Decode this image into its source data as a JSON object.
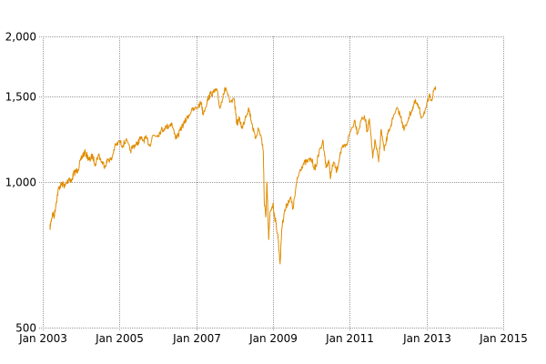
{
  "chart_data": {
    "type": "line",
    "y_scale": "log",
    "xlim": [
      "2003-01-01",
      "2015-01-01"
    ],
    "ylim": [
      500,
      2000
    ],
    "x_ticks": [
      {
        "date": "2003-01-01",
        "label": "Jan 2003"
      },
      {
        "date": "2005-01-01",
        "label": "Jan 2005"
      },
      {
        "date": "2007-01-01",
        "label": "Jan 2007"
      },
      {
        "date": "2009-01-01",
        "label": "Jan 2009"
      },
      {
        "date": "2011-01-01",
        "label": "Jan 2011"
      },
      {
        "date": "2013-01-01",
        "label": "Jan 2013"
      },
      {
        "date": "2015-01-01",
        "label": "Jan 2015"
      }
    ],
    "y_ticks": [
      {
        "value": 2000,
        "label": "2,000"
      },
      {
        "value": 1500,
        "label": "1,500"
      },
      {
        "value": 1000,
        "label": "1,000"
      },
      {
        "value": 500,
        "label": "500"
      }
    ],
    "grid": true,
    "line_color": "#e08c00",
    "series": [
      {
        "points": [
          [
            "2003-03-10",
            800
          ],
          [
            "2003-03-20",
            830
          ],
          [
            "2003-04-05",
            860
          ],
          [
            "2003-04-20",
            850
          ],
          [
            "2003-05-10",
            910
          ],
          [
            "2003-06-01",
            970
          ],
          [
            "2003-06-20",
            985
          ],
          [
            "2003-07-10",
            990
          ],
          [
            "2003-08-01",
            980
          ],
          [
            "2003-08-20",
            1000
          ],
          [
            "2003-09-10",
            1020
          ],
          [
            "2003-10-01",
            1000
          ],
          [
            "2003-10-20",
            1040
          ],
          [
            "2003-11-10",
            1050
          ],
          [
            "2003-12-01",
            1060
          ],
          [
            "2003-12-31",
            1112
          ],
          [
            "2004-01-20",
            1140
          ],
          [
            "2004-02-10",
            1150
          ],
          [
            "2004-03-10",
            1120
          ],
          [
            "2004-03-25",
            1110
          ],
          [
            "2004-04-15",
            1135
          ],
          [
            "2004-05-15",
            1090
          ],
          [
            "2004-06-15",
            1140
          ],
          [
            "2004-07-15",
            1100
          ],
          [
            "2004-08-15",
            1080
          ],
          [
            "2004-09-15",
            1115
          ],
          [
            "2004-10-15",
            1110
          ],
          [
            "2004-11-15",
            1180
          ],
          [
            "2004-12-31",
            1212
          ],
          [
            "2005-02-01",
            1190
          ],
          [
            "2005-03-01",
            1220
          ],
          [
            "2005-04-15",
            1160
          ],
          [
            "2005-05-15",
            1190
          ],
          [
            "2005-06-15",
            1195
          ],
          [
            "2005-07-15",
            1230
          ],
          [
            "2005-08-15",
            1220
          ],
          [
            "2005-09-15",
            1230
          ],
          [
            "2005-10-15",
            1190
          ],
          [
            "2005-11-15",
            1250
          ],
          [
            "2005-12-31",
            1250
          ],
          [
            "2006-01-31",
            1280
          ],
          [
            "2006-03-01",
            1290
          ],
          [
            "2006-04-20",
            1310
          ],
          [
            "2006-05-10",
            1325
          ],
          [
            "2006-06-15",
            1240
          ],
          [
            "2006-07-15",
            1250
          ],
          [
            "2006-08-15",
            1300
          ],
          [
            "2006-09-15",
            1330
          ],
          [
            "2006-10-15",
            1370
          ],
          [
            "2006-11-15",
            1400
          ],
          [
            "2006-12-31",
            1420
          ],
          [
            "2007-02-20",
            1460
          ],
          [
            "2007-03-05",
            1380
          ],
          [
            "2007-04-15",
            1470
          ],
          [
            "2007-05-15",
            1520
          ],
          [
            "2007-06-15",
            1530
          ],
          [
            "2007-07-15",
            1550
          ],
          [
            "2007-08-15",
            1420
          ],
          [
            "2007-09-15",
            1520
          ],
          [
            "2007-10-10",
            1565
          ],
          [
            "2007-11-15",
            1460
          ],
          [
            "2007-12-31",
            1470
          ],
          [
            "2008-01-22",
            1320
          ],
          [
            "2008-02-15",
            1350
          ],
          [
            "2008-03-15",
            1290
          ],
          [
            "2008-04-15",
            1370
          ],
          [
            "2008-05-15",
            1420
          ],
          [
            "2008-06-15",
            1320
          ],
          [
            "2008-07-15",
            1230
          ],
          [
            "2008-08-15",
            1290
          ],
          [
            "2008-09-10",
            1240
          ],
          [
            "2008-09-30",
            1160
          ],
          [
            "2008-10-10",
            900
          ],
          [
            "2008-10-25",
            850
          ],
          [
            "2008-11-04",
            1000
          ],
          [
            "2008-11-20",
            760
          ],
          [
            "2008-12-05",
            870
          ],
          [
            "2008-12-31",
            900
          ],
          [
            "2009-01-15",
            850
          ],
          [
            "2009-02-15",
            780
          ],
          [
            "2009-03-09",
            677
          ],
          [
            "2009-03-25",
            800
          ],
          [
            "2009-04-15",
            860
          ],
          [
            "2009-05-15",
            900
          ],
          [
            "2009-06-15",
            930
          ],
          [
            "2009-07-10",
            880
          ],
          [
            "2009-08-15",
            1000
          ],
          [
            "2009-09-15",
            1060
          ],
          [
            "2009-10-15",
            1090
          ],
          [
            "2009-11-15",
            1100
          ],
          [
            "2009-12-31",
            1115
          ],
          [
            "2010-01-31",
            1070
          ],
          [
            "2010-02-15",
            1080
          ],
          [
            "2010-03-15",
            1150
          ],
          [
            "2010-04-23",
            1217
          ],
          [
            "2010-05-20",
            1070
          ],
          [
            "2010-06-15",
            1110
          ],
          [
            "2010-07-02",
            1020
          ],
          [
            "2010-07-30",
            1100
          ],
          [
            "2010-08-30",
            1050
          ],
          [
            "2010-09-30",
            1140
          ],
          [
            "2010-10-30",
            1180
          ],
          [
            "2010-11-30",
            1190
          ],
          [
            "2010-12-31",
            1258
          ],
          [
            "2011-02-18",
            1343
          ],
          [
            "2011-03-16",
            1260
          ],
          [
            "2011-04-29",
            1363
          ],
          [
            "2011-05-31",
            1345
          ],
          [
            "2011-06-16",
            1270
          ],
          [
            "2011-07-07",
            1350
          ],
          [
            "2011-08-08",
            1120
          ],
          [
            "2011-08-31",
            1220
          ],
          [
            "2011-10-03",
            1100
          ],
          [
            "2011-10-27",
            1285
          ],
          [
            "2011-11-25",
            1160
          ],
          [
            "2011-12-30",
            1258
          ],
          [
            "2012-02-15",
            1350
          ],
          [
            "2012-04-02",
            1420
          ],
          [
            "2012-05-15",
            1330
          ],
          [
            "2012-06-01",
            1278
          ],
          [
            "2012-07-15",
            1360
          ],
          [
            "2012-08-15",
            1410
          ],
          [
            "2012-09-14",
            1465
          ],
          [
            "2012-10-15",
            1430
          ],
          [
            "2012-11-15",
            1360
          ],
          [
            "2012-12-31",
            1426
          ],
          [
            "2013-01-25",
            1500
          ],
          [
            "2013-02-25",
            1490
          ],
          [
            "2013-03-15",
            1560
          ],
          [
            "2013-03-28",
            1570
          ]
        ]
      }
    ]
  }
}
